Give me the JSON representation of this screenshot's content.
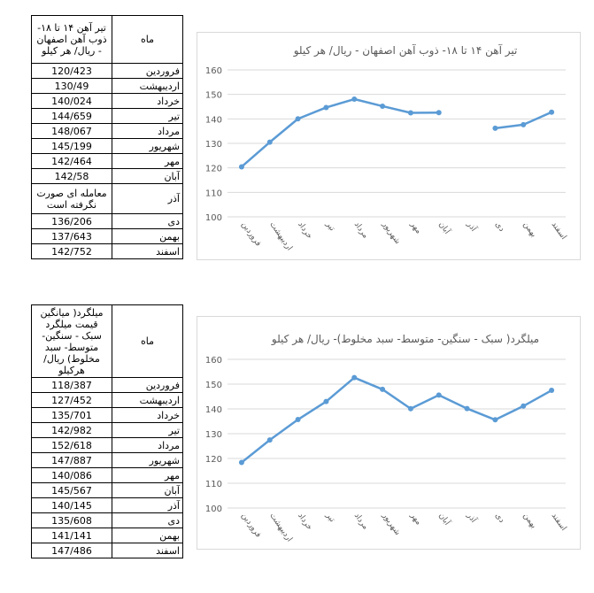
{
  "table1": {
    "col_month_header": "ماه",
    "col_value_header": "تیر آهن ۱۴ تا ۱۸- ذوب آهن اصفهان - ریال/ هر کیلو",
    "rows": [
      {
        "month": "فروردین",
        "value": "120/423"
      },
      {
        "month": "اردیبهشت",
        "value": "130/49"
      },
      {
        "month": "خرداد",
        "value": "140/024"
      },
      {
        "month": "تیر",
        "value": "144/659"
      },
      {
        "month": "مرداد",
        "value": "148/067"
      },
      {
        "month": "شهریور",
        "value": "145/199"
      },
      {
        "month": "مهر",
        "value": "142/464"
      },
      {
        "month": "آبان",
        "value": "142/58"
      },
      {
        "month": "آذر",
        "value": "معامله ای صورت نگرفته است"
      },
      {
        "month": "دی",
        "value": "136/206"
      },
      {
        "month": "بهمن",
        "value": "137/643"
      },
      {
        "month": "اسفند",
        "value": "142/752"
      }
    ]
  },
  "table2": {
    "col_month_header": "ماه",
    "col_value_header": "میلگرد( میانگین قیمت میلگرد سبک - سنگین- متوسط- سبد مخلوط) ریال/ هرکیلو",
    "rows": [
      {
        "month": "فروردین",
        "value": "118/387"
      },
      {
        "month": "اردیبهشت",
        "value": "127/452"
      },
      {
        "month": "خرداد",
        "value": "135/701"
      },
      {
        "month": "تیر",
        "value": "142/982"
      },
      {
        "month": "مرداد",
        "value": "152/618"
      },
      {
        "month": "شهریور",
        "value": "147/887"
      },
      {
        "month": "مهر",
        "value": "140/086"
      },
      {
        "month": "آبان",
        "value": "145/567"
      },
      {
        "month": "آذر",
        "value": "140/145"
      },
      {
        "month": "دی",
        "value": "135/608"
      },
      {
        "month": "بهمن",
        "value": "141/141"
      },
      {
        "month": "اسفند",
        "value": "147/486"
      }
    ]
  },
  "chart_data": [
    {
      "type": "line",
      "title": "تیر آهن ۱۴ تا ۱۸-  ذوب آهن اصفهان - ریال/ هر کیلو",
      "xlabel": "",
      "ylabel": "",
      "categories": [
        "فروردین",
        "اردیبهشت",
        "خرداد",
        "تیر",
        "مرداد",
        "شهریور",
        "مهر",
        "آبان",
        "آذر",
        "دی",
        "بهمن",
        "اسفند"
      ],
      "values": [
        120.423,
        130.49,
        140.024,
        144.659,
        148.067,
        145.199,
        142.464,
        142.58,
        null,
        136.206,
        137.643,
        142.752
      ],
      "ylim": [
        100,
        160
      ],
      "yticks": [
        "100",
        "110",
        "120",
        "130",
        "140",
        "150",
        "160"
      ],
      "grid": true,
      "color": "#5b9bd5"
    },
    {
      "type": "line",
      "title": "میلگرد( سبک - سنگین- متوسط- سبد مخلوط)- ریال/ هر کیلو",
      "xlabel": "",
      "ylabel": "",
      "categories": [
        "فروردین",
        "اردیبهشت",
        "خرداد",
        "تیر",
        "مرداد",
        "شهریور",
        "مهر",
        "آبان",
        "آذر",
        "دی",
        "بهمن",
        "اسفند"
      ],
      "values": [
        118.387,
        127.452,
        135.701,
        142.982,
        152.618,
        147.887,
        140.086,
        145.567,
        140.145,
        135.608,
        141.141,
        147.486
      ],
      "ylim": [
        100,
        160
      ],
      "yticks": [
        "100",
        "110",
        "120",
        "130",
        "140",
        "150",
        "160"
      ],
      "grid": true,
      "color": "#5b9bd5"
    }
  ]
}
